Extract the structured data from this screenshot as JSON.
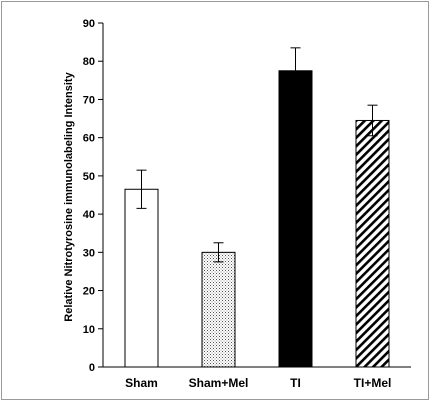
{
  "chart_data": {
    "type": "bar",
    "title": "",
    "xlabel": "",
    "ylabel": "Relative Nitrotyrosine immunolabeling Intensity",
    "categories": [
      "Sham",
      "Sham+Mel",
      "TI",
      "TI+Mel"
    ],
    "values": [
      46.5,
      30,
      77.5,
      64.5
    ],
    "errors": [
      5,
      2.5,
      6,
      4
    ],
    "fills": [
      "white",
      "dotted",
      "black",
      "diagonal-hatch"
    ],
    "ylim": [
      0,
      90
    ],
    "yticks": [
      "0",
      "10",
      "20",
      "30",
      "40",
      "50",
      "60",
      "70",
      "80",
      "90"
    ],
    "grid": false,
    "legend": "none"
  }
}
